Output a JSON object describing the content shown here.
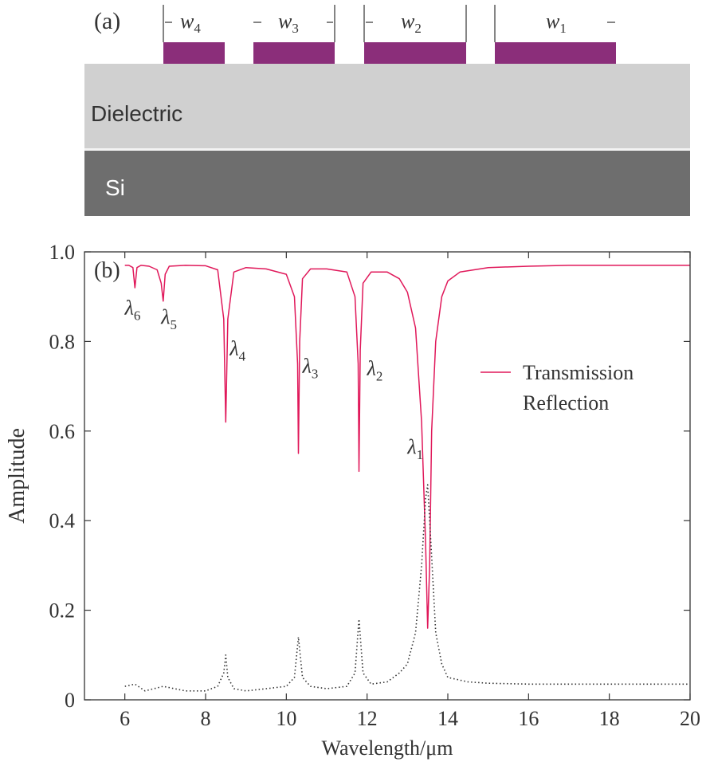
{
  "panel_a": {
    "label": "(a)",
    "widths": [
      {
        "sym": "w",
        "sub": "4"
      },
      {
        "sym": "w",
        "sub": "3"
      },
      {
        "sym": "w",
        "sub": "2"
      },
      {
        "sym": "w",
        "sub": "1"
      }
    ],
    "layers": {
      "dielectric": "Dielectric",
      "substrate": "Si"
    },
    "colors": {
      "metal": "#8b2e7a",
      "dielectric": "#d0d0d0",
      "substrate": "#6e6e6e"
    }
  },
  "chart_data": {
    "type": "line",
    "panel_label": "(b)",
    "xlabel": "Wavelength/μm",
    "ylabel": "Amplitude",
    "xlim": [
      5,
      20
    ],
    "ylim": [
      0,
      1.0
    ],
    "xticks": [
      6,
      8,
      10,
      12,
      14,
      16,
      18,
      20
    ],
    "yticks": [
      0,
      0.2,
      0.4,
      0.6,
      0.8,
      1.0
    ],
    "ytick_labels": [
      "0",
      "0.2",
      "0.4",
      "0.6",
      "0.8",
      "1.0"
    ],
    "legend": {
      "placement": "right",
      "entries": [
        "Transmission",
        "Reflection"
      ]
    },
    "series": [
      {
        "name": "Transmission",
        "style": "solid",
        "color": "#e0185a",
        "x": [
          6.0,
          6.1,
          6.2,
          6.25,
          6.3,
          6.4,
          6.6,
          6.8,
          6.9,
          6.95,
          7.0,
          7.1,
          7.5,
          8.0,
          8.3,
          8.45,
          8.5,
          8.55,
          8.7,
          9.0,
          9.5,
          10.0,
          10.2,
          10.28,
          10.3,
          10.33,
          10.4,
          10.6,
          11.0,
          11.5,
          11.7,
          11.78,
          11.8,
          11.83,
          11.9,
          12.1,
          12.5,
          12.8,
          13.0,
          13.2,
          13.35,
          13.45,
          13.5,
          13.55,
          13.6,
          13.7,
          13.85,
          14.0,
          14.3,
          15.0,
          16.0,
          17.0,
          18.0,
          19.0,
          20.0
        ],
        "values": [
          0.97,
          0.97,
          0.965,
          0.92,
          0.965,
          0.97,
          0.968,
          0.96,
          0.93,
          0.89,
          0.95,
          0.968,
          0.97,
          0.969,
          0.96,
          0.85,
          0.62,
          0.85,
          0.955,
          0.965,
          0.962,
          0.95,
          0.9,
          0.75,
          0.55,
          0.8,
          0.94,
          0.962,
          0.962,
          0.955,
          0.9,
          0.75,
          0.51,
          0.78,
          0.93,
          0.955,
          0.955,
          0.94,
          0.91,
          0.83,
          0.62,
          0.35,
          0.16,
          0.3,
          0.6,
          0.8,
          0.9,
          0.935,
          0.955,
          0.965,
          0.968,
          0.97,
          0.97,
          0.97,
          0.97
        ]
      },
      {
        "name": "Reflection",
        "style": "dotted",
        "color": "#333333",
        "x": [
          6.0,
          6.25,
          6.5,
          6.95,
          7.5,
          8.0,
          8.3,
          8.45,
          8.5,
          8.55,
          8.7,
          9.0,
          9.5,
          10.0,
          10.2,
          10.3,
          10.4,
          10.6,
          11.0,
          11.5,
          11.7,
          11.8,
          11.9,
          12.1,
          12.5,
          12.8,
          13.0,
          13.2,
          13.35,
          13.45,
          13.5,
          13.6,
          13.7,
          13.85,
          14.0,
          14.5,
          15.0,
          16.0,
          16.7,
          17.4,
          18.0,
          19.0,
          20.0
        ],
        "values": [
          0.03,
          0.035,
          0.02,
          0.03,
          0.02,
          0.02,
          0.03,
          0.06,
          0.1,
          0.05,
          0.025,
          0.02,
          0.025,
          0.03,
          0.05,
          0.14,
          0.05,
          0.03,
          0.025,
          0.03,
          0.06,
          0.18,
          0.06,
          0.035,
          0.04,
          0.06,
          0.08,
          0.15,
          0.3,
          0.45,
          0.48,
          0.32,
          0.15,
          0.08,
          0.05,
          0.04,
          0.037,
          0.035,
          0.035,
          0.035,
          0.035,
          0.035,
          0.035
        ]
      }
    ],
    "annotations": [
      {
        "sym": "λ",
        "sub": "6",
        "x": 6.0,
        "y": 0.86
      },
      {
        "sym": "λ",
        "sub": "5",
        "x": 6.9,
        "y": 0.84
      },
      {
        "sym": "λ",
        "sub": "4",
        "x": 8.6,
        "y": 0.77
      },
      {
        "sym": "λ",
        "sub": "3",
        "x": 10.4,
        "y": 0.73
      },
      {
        "sym": "λ",
        "sub": "2",
        "x": 12.0,
        "y": 0.725
      },
      {
        "sym": "λ",
        "sub": "1",
        "x": 13.0,
        "y": 0.55
      }
    ]
  }
}
